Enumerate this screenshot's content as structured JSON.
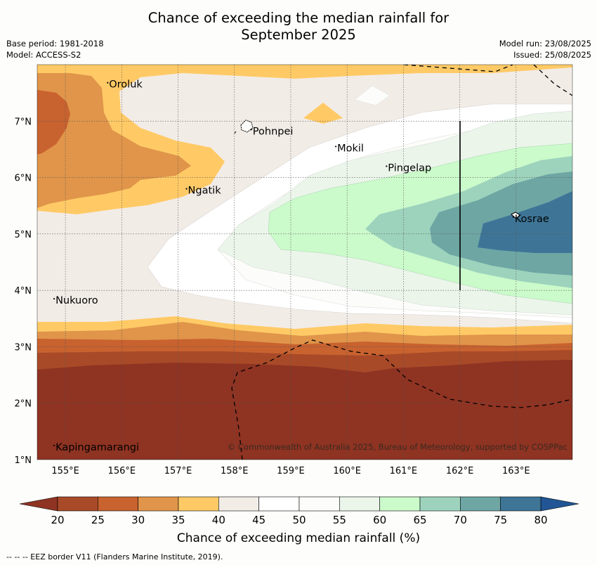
{
  "title": {
    "line1": "Chance of exceeding the median rainfall for",
    "line2": "September 2025"
  },
  "meta_left": {
    "base_period": "Base period: 1981-2018",
    "model": "Model: ACCESS-S2"
  },
  "meta_right": {
    "model_run": "Model run: 23/08/2025",
    "issued": "Issued: 25/08/2025"
  },
  "axes": {
    "lon_ticks": [
      "155°E",
      "156°E",
      "157°E",
      "158°E",
      "159°E",
      "160°E",
      "161°E",
      "162°E",
      "163°E"
    ],
    "lat_ticks": [
      "7°N",
      "6°N",
      "5°N",
      "4°N",
      "3°N",
      "2°N",
      "1°N"
    ]
  },
  "places": [
    {
      "name": "Oroluk",
      "lon": 155.75,
      "lat": 7.68
    },
    {
      "name": "Pohnpei",
      "lon": 158.3,
      "lat": 6.85
    },
    {
      "name": "Mokil",
      "lon": 159.8,
      "lat": 6.55
    },
    {
      "name": "Pingelap",
      "lon": 160.7,
      "lat": 6.2
    },
    {
      "name": "Ngatik",
      "lon": 157.15,
      "lat": 5.8
    },
    {
      "name": "Kosrae",
      "lon": 162.95,
      "lat": 5.3
    },
    {
      "name": "Nukuoro",
      "lon": 154.8,
      "lat": 3.85
    },
    {
      "name": "Kapingamarangi",
      "lon": 154.8,
      "lat": 1.25
    }
  ],
  "copyright": "© Commonwealth of Australia 2025, Bureau of Meteorology, supported by COSPPac",
  "colorbar": {
    "ticks": [
      "20",
      "25",
      "30",
      "35",
      "40",
      "45",
      "50",
      "55",
      "60",
      "65",
      "70",
      "75",
      "80"
    ],
    "colors": [
      "#a84a28",
      "#c8622f",
      "#e0954a",
      "#ffca66",
      "#f2ece7",
      "#ffffff",
      "#fcfdfb",
      "#ebf5ea",
      "#cbfacb",
      "#9dd3bc",
      "#6ea6a4",
      "#3e7597"
    ],
    "under_color": "#8f3322",
    "over_color": "#215595",
    "label": "Chance of exceeding median rainfall (%)"
  },
  "footer": "--  --  -- EEZ border V11 (Flanders Marine Institute, 2019)."
}
